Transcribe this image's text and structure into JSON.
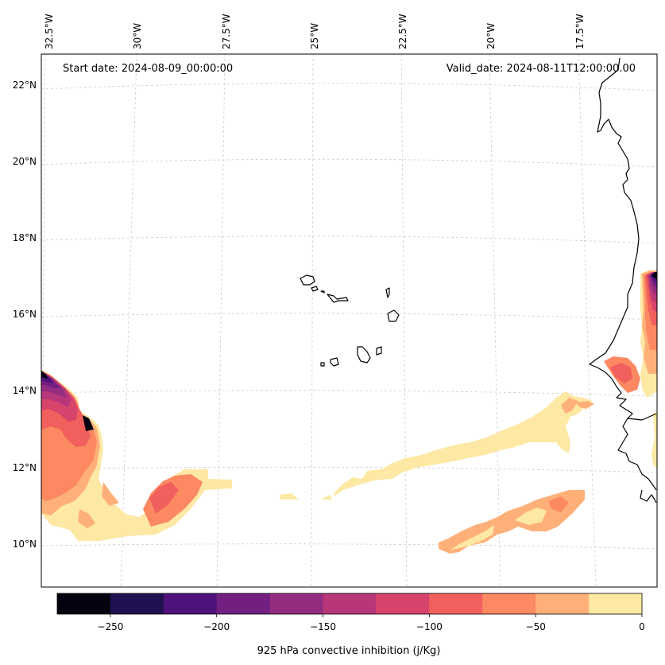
{
  "map": {
    "start_label": "Start date: 2024-08-09_00:00:00",
    "valid_label": "Valid_date: 2024-08-11T12:00:00.00",
    "lon_labels": [
      "32.5°W",
      "30°W",
      "27.5°W",
      "25°W",
      "22.5°W",
      "20°W",
      "17.5°W"
    ],
    "lat_labels": [
      "22°N",
      "20°N",
      "18°N",
      "16°N",
      "14°N",
      "12°N",
      "10°N"
    ]
  },
  "colorbar": {
    "label": "925 hPa convective inhibition (j/Kg)",
    "tick_labels": [
      "−250",
      "−200",
      "−150",
      "−100",
      "−50",
      "0"
    ],
    "colors": [
      "#05030f",
      "#221150",
      "#4f127b",
      "#721f81",
      "#942c80",
      "#b73779",
      "#d8456c",
      "#f1605d",
      "#fc8961",
      "#feb078",
      "#fde8a4"
    ]
  }
}
